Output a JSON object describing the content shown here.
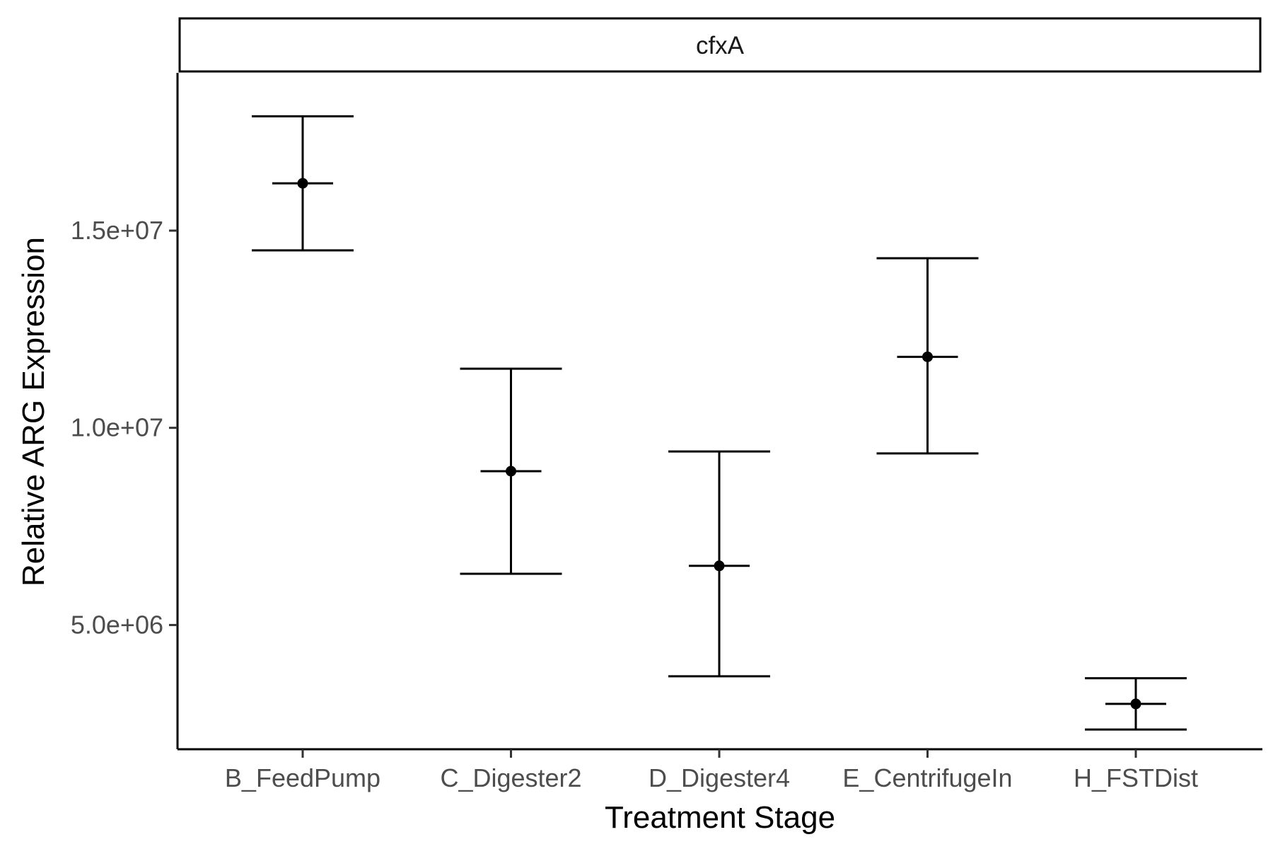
{
  "chart_data": {
    "type": "scatter",
    "facet_label": "cfxA",
    "xlabel": "Treatment Stage",
    "ylabel": "Relative ARG Expression",
    "categories": [
      "B_FeedPump",
      "C_Digester2",
      "D_Digester4",
      "E_CentrifugeIn",
      "H_FSTDist"
    ],
    "series": [
      {
        "values": [
          16200000,
          8900000,
          6500000,
          11800000,
          3000000
        ],
        "lower": [
          14500000,
          6300000,
          3700000,
          9350000,
          2350000
        ],
        "upper": [
          17900000,
          11500000,
          9400000,
          14300000,
          3650000
        ]
      }
    ],
    "y_ticks": [
      5000000,
      10000000,
      15000000
    ],
    "y_tick_labels": [
      "5.0e+06",
      "1.0e+07",
      "1.5e+07"
    ],
    "ylim": [
      1850000,
      19000000
    ],
    "grid": false,
    "error_bars": true
  }
}
